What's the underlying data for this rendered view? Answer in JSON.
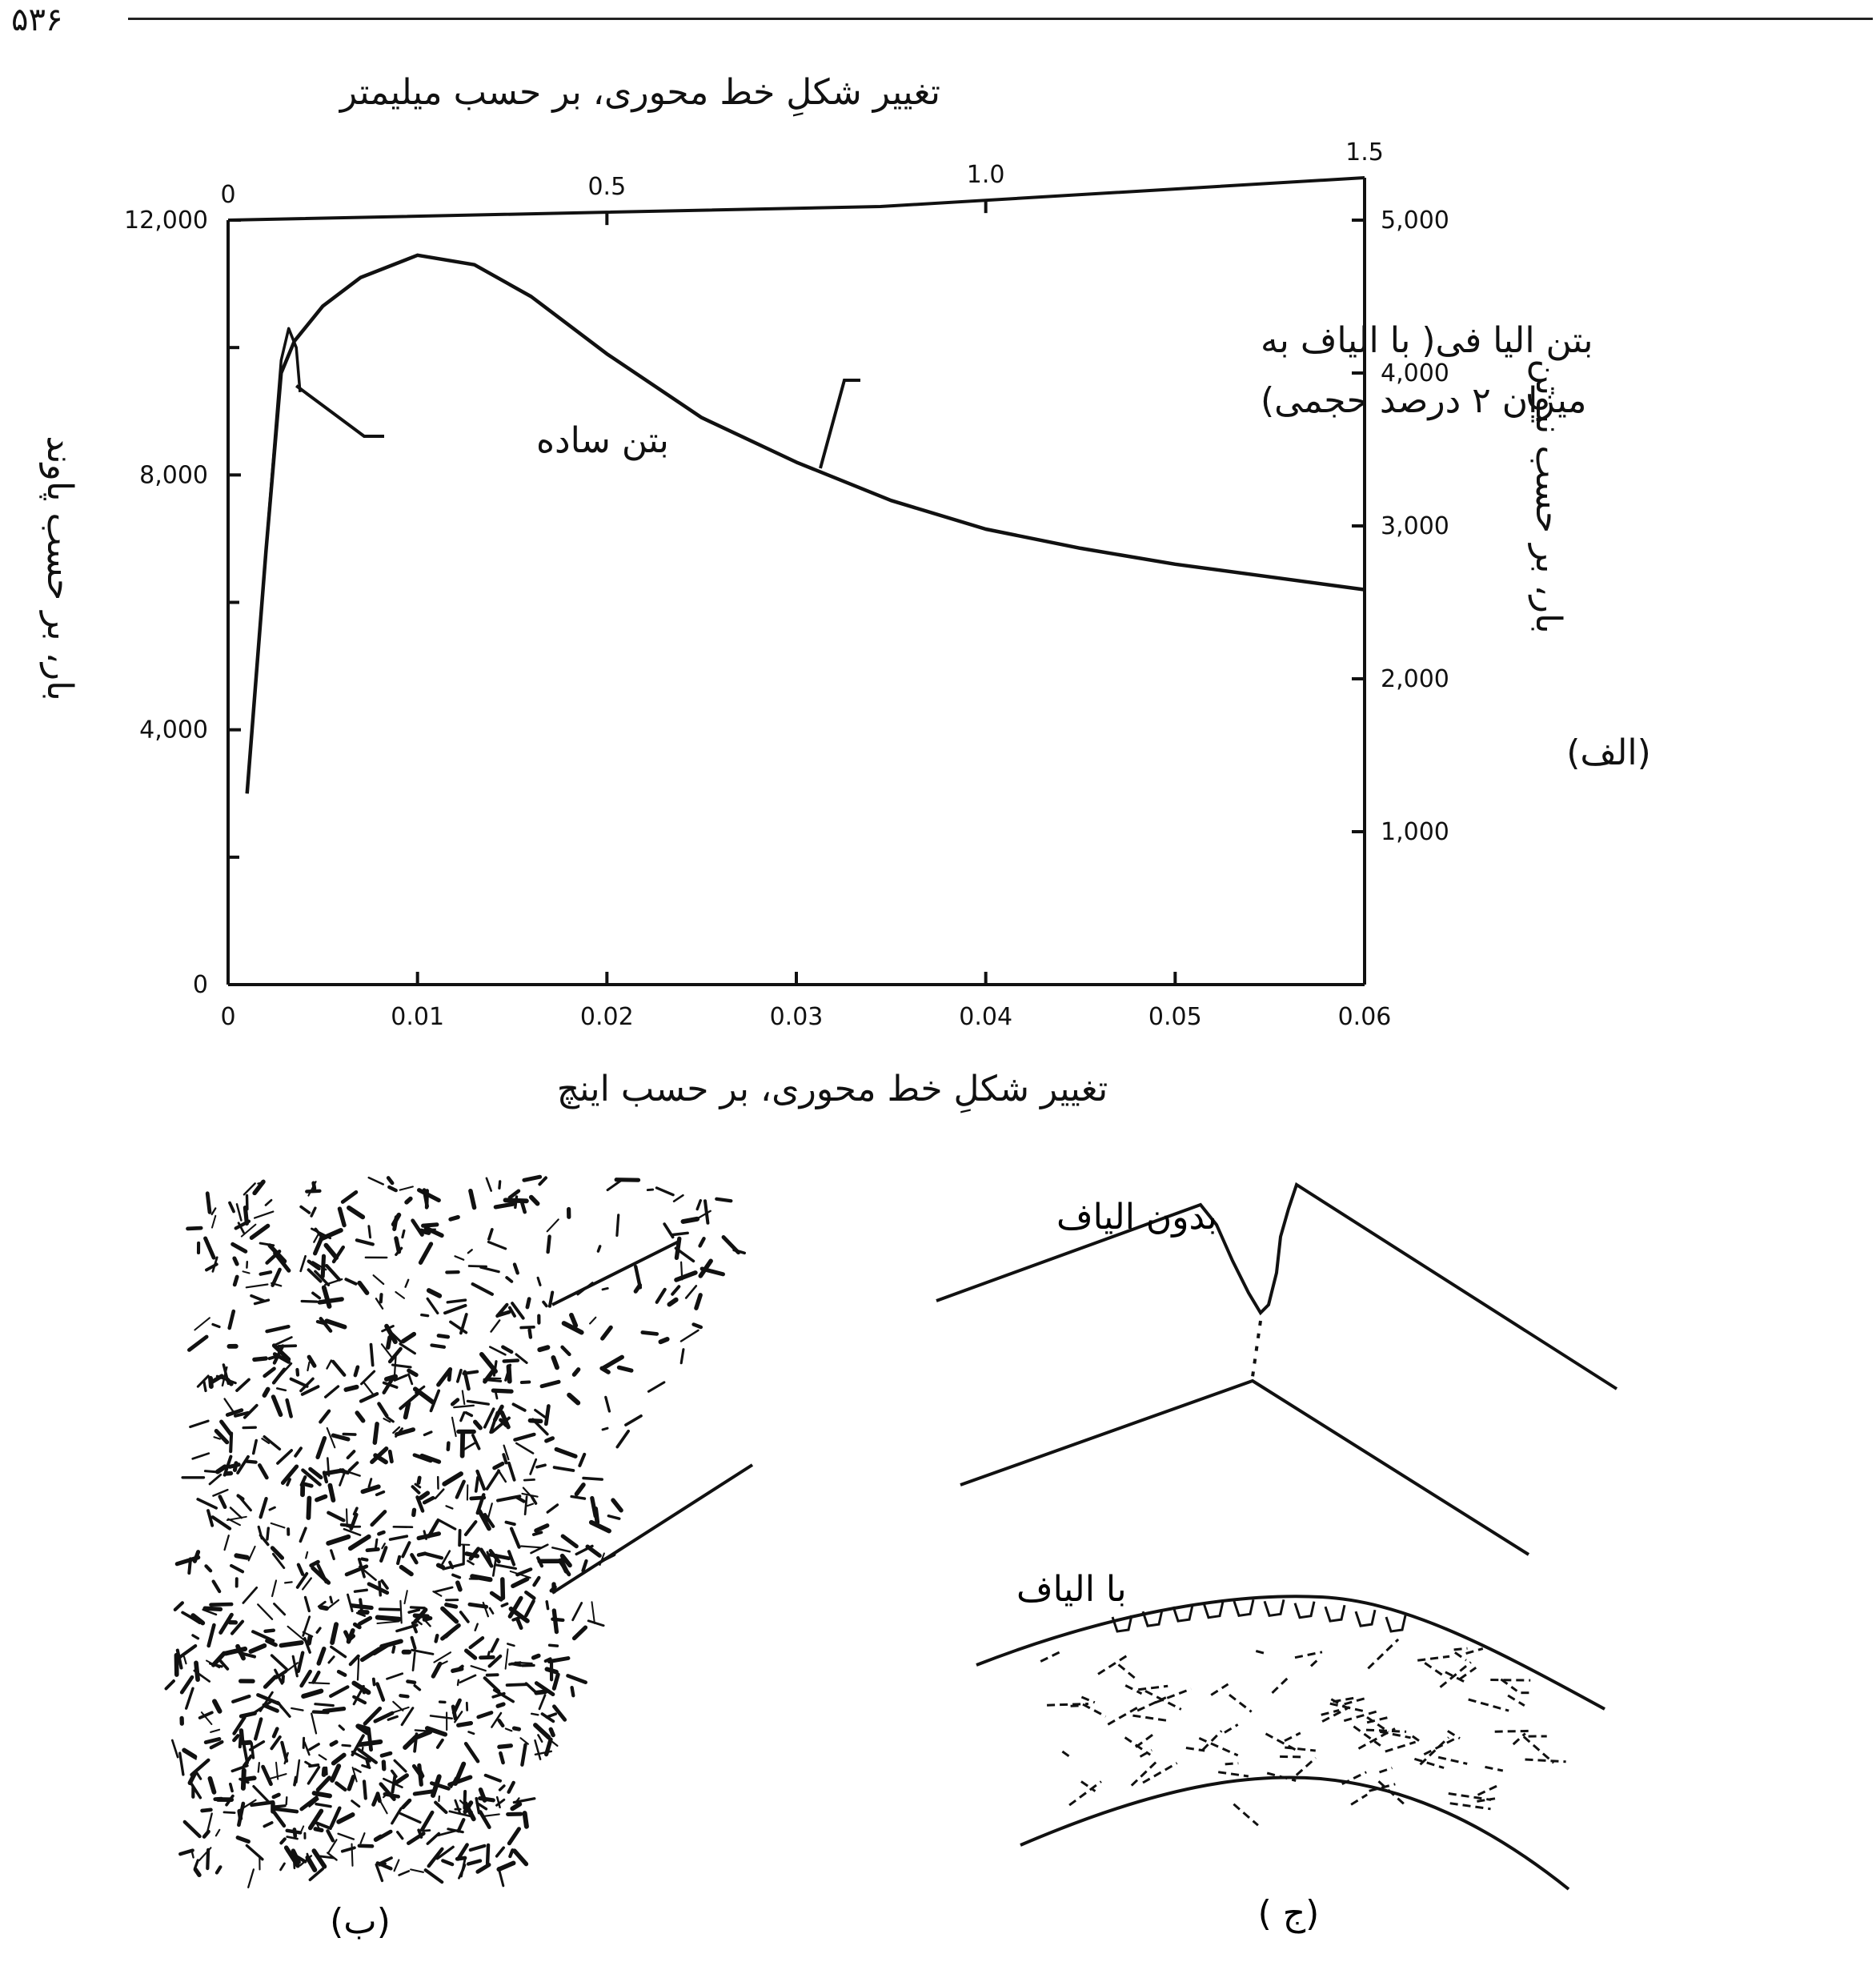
{
  "page": {
    "number": "۵۳۶"
  },
  "chart_data": {
    "type": "line",
    "title": "",
    "panel_label": "(الف)",
    "xlabel": "تغییر شکلِ خط محوری، بر حسب اینچ",
    "x2label": "تغییر شکلِ خط محوری، بر حسب میلیمتر",
    "ylabel": "بار، بر حسب پاوند",
    "y2label": "بار، بر حسب نیوتن",
    "xlim": [
      0,
      0.06
    ],
    "ylim": [
      0,
      12000
    ],
    "x2lim": [
      0,
      1.5
    ],
    "y2lim": [
      0,
      5000
    ],
    "x_ticks": [
      {
        "value": 0,
        "label": "0"
      },
      {
        "value": 0.01,
        "label": "0.01"
      },
      {
        "value": 0.02,
        "label": "0.02"
      },
      {
        "value": 0.03,
        "label": "0.03"
      },
      {
        "value": 0.04,
        "label": "0.04"
      },
      {
        "value": 0.05,
        "label": "0.05"
      },
      {
        "value": 0.06,
        "label": "0.06"
      }
    ],
    "y_ticks": [
      {
        "value": 0,
        "label": "0"
      },
      {
        "value": 4000,
        "label": "4,000"
      },
      {
        "value": 8000,
        "label": "8,000"
      },
      {
        "value": 12000,
        "label": "12,000"
      }
    ],
    "y_minor_ticks": [
      2000,
      6000,
      10000
    ],
    "x2_ticks": [
      {
        "value": 0,
        "label": "0"
      },
      {
        "value": 0.5,
        "label": "0.5"
      },
      {
        "value": 1.0,
        "label": "1.0"
      },
      {
        "value": 1.5,
        "label": "1.5"
      }
    ],
    "y2_ticks": [
      {
        "value": 1000,
        "label": "1,000"
      },
      {
        "value": 2000,
        "label": "2,000"
      },
      {
        "value": 3000,
        "label": "3,000"
      },
      {
        "value": 4000,
        "label": "4,000"
      },
      {
        "value": 5000,
        "label": "5,000"
      }
    ],
    "grid": false,
    "series": [
      {
        "name": "بتن ساده",
        "x": [
          0.001,
          0.002,
          0.0028,
          0.0032,
          0.0036,
          0.0038
        ],
        "y": [
          3000,
          6800,
          9800,
          10300,
          10000,
          9300
        ]
      },
      {
        "name": "بتن الیا فی( با الیاف به میزان ۲ درصد حجمی)",
        "x": [
          0.001,
          0.002,
          0.0028,
          0.0035,
          0.005,
          0.007,
          0.01,
          0.013,
          0.016,
          0.02,
          0.025,
          0.03,
          0.035,
          0.04,
          0.045,
          0.05,
          0.055,
          0.06
        ],
        "y": [
          3000,
          6800,
          9600,
          10100,
          10650,
          11100,
          11450,
          11300,
          10800,
          9900,
          8900,
          8200,
          7600,
          7150,
          6850,
          6600,
          6400,
          6200
        ]
      }
    ],
    "annotations": {
      "plain": "بتن ساده",
      "fiber_line1": "بتن الیا فی( با الیاف به",
      "fiber_line2": "میزان ۲ درصد حجمی)"
    }
  },
  "photo": {
    "label": "(ب)"
  },
  "sketch": {
    "label": "(ج )",
    "without_fibers": "بدون الیاف",
    "with_fibers": "با الیاف"
  }
}
